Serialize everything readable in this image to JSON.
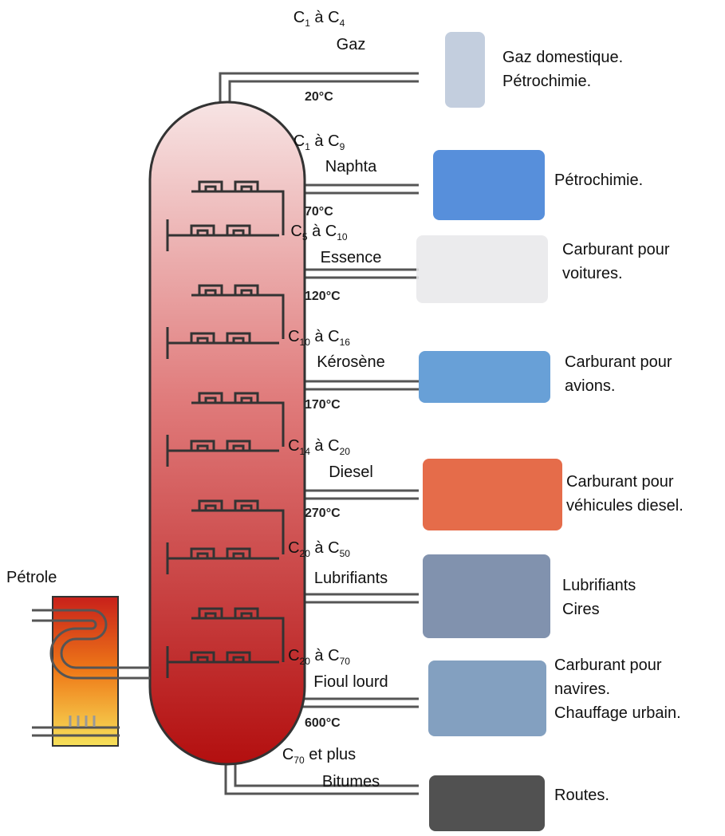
{
  "title_label": "Pétrole",
  "fractions": [
    {
      "formula": [
        {
          "t": "C"
        },
        {
          "s": "1"
        },
        {
          "t": " à C"
        },
        {
          "s": "4"
        }
      ],
      "name": "Gaz",
      "temperature": "20°C",
      "uses": [
        "Gaz domestique.",
        "Pétrochimie."
      ]
    },
    {
      "formula": [
        {
          "t": "C"
        },
        {
          "s": "1"
        },
        {
          "t": " à C"
        },
        {
          "s": "9"
        }
      ],
      "name": "Naphta",
      "temperature": "70°C",
      "uses": [
        "Pétrochimie."
      ]
    },
    {
      "formula": [
        {
          "t": "C"
        },
        {
          "s": "5"
        },
        {
          "t": " à C"
        },
        {
          "s": "10"
        }
      ],
      "name": "Essence",
      "temperature": "120°C",
      "uses": [
        "Carburant pour",
        "voitures."
      ]
    },
    {
      "formula": [
        {
          "t": "C"
        },
        {
          "s": "10"
        },
        {
          "t": " à C"
        },
        {
          "s": "16"
        }
      ],
      "name": "Kérosène",
      "temperature": "170°C",
      "uses": [
        "Carburant pour",
        "avions."
      ]
    },
    {
      "formula": [
        {
          "t": "C"
        },
        {
          "s": "14"
        },
        {
          "t": " à C"
        },
        {
          "s": "20"
        }
      ],
      "name": "Diesel",
      "temperature": "270°C",
      "uses": [
        "Carburant pour",
        "véhicules diesel."
      ]
    },
    {
      "formula": [
        {
          "t": "C"
        },
        {
          "s": "20"
        },
        {
          "t": " à C"
        },
        {
          "s": "50"
        }
      ],
      "name": "Lubrifiants",
      "uses": [
        "Lubrifiants",
        "Cires"
      ]
    },
    {
      "formula": [
        {
          "t": "C"
        },
        {
          "s": "20"
        },
        {
          "t": " à C"
        },
        {
          "s": "70"
        }
      ],
      "name": "Fioul lourd",
      "temperature": "600°C",
      "uses": [
        "Carburant pour",
        "navires.",
        "Chauffage urbain."
      ]
    },
    {
      "formula": [
        {
          "t": "C"
        },
        {
          "s": "70"
        },
        {
          "t": " et plus"
        }
      ],
      "name": "Bitumes",
      "uses": [
        "Routes."
      ]
    }
  ]
}
